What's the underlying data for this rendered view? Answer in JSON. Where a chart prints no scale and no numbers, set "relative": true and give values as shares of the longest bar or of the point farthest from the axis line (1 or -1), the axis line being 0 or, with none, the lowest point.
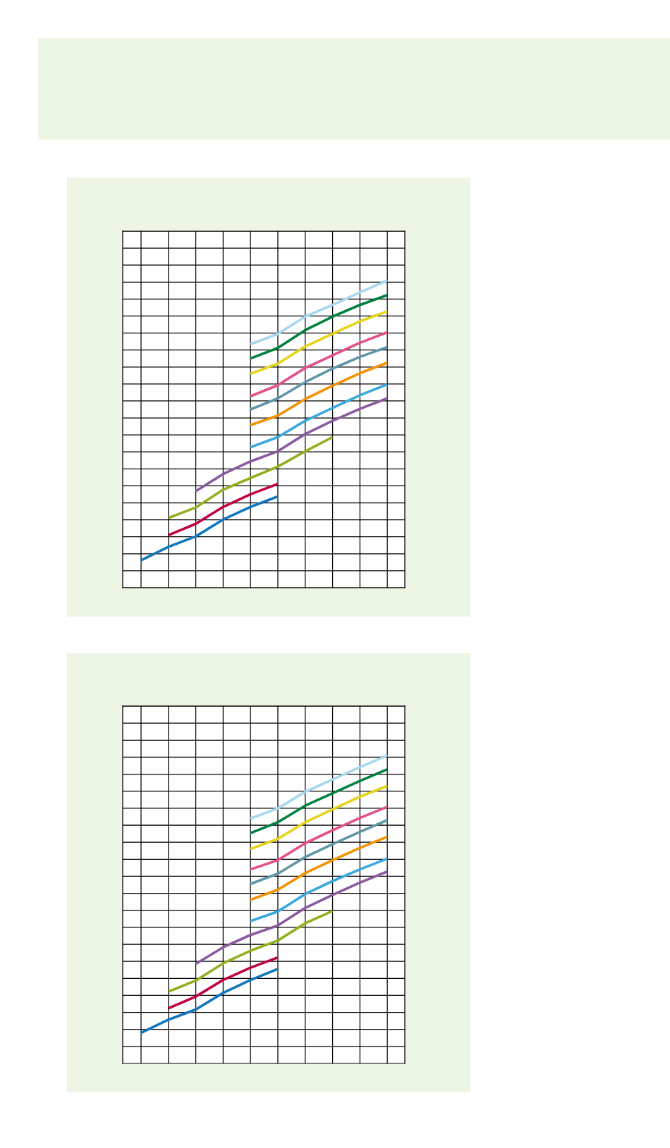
{
  "chart_data": [
    {
      "type": "line",
      "relative": true,
      "grid": true,
      "categories": [
        null,
        null,
        null,
        null,
        null,
        null,
        null,
        null,
        null,
        null
      ],
      "series": [
        {
          "color": "#0f77bd",
          "values": [
            0.089,
            0.133,
            0.167,
            0.222,
            0.263,
            0.297,
            null,
            null,
            null,
            null
          ]
        },
        {
          "color": "#c0003c",
          "values": [
            null,
            0.171,
            0.208,
            0.263,
            0.304,
            0.338,
            null,
            null,
            null,
            null
          ]
        },
        {
          "color": "#8fb120",
          "values": [
            null,
            0.227,
            0.261,
            0.319,
            0.357,
            0.394,
            0.444,
            0.49,
            null,
            null
          ]
        },
        {
          "color": "#8b5a9e",
          "values": [
            null,
            null,
            0.314,
            0.37,
            0.411,
            0.444,
            0.5,
            0.543,
            0.582,
            0.616
          ]
        },
        {
          "color": "#3aa8dc",
          "values": [
            null,
            null,
            null,
            null,
            0.457,
            0.49,
            0.543,
            0.585,
            0.626,
            0.662
          ]
        },
        {
          "color": "#f39200",
          "values": [
            null,
            null,
            null,
            null,
            0.529,
            0.56,
            0.614,
            0.657,
            0.698,
            0.732
          ]
        },
        {
          "color": "#5f96a8",
          "values": [
            null,
            null,
            null,
            null,
            0.58,
            0.616,
            0.669,
            0.713,
            0.751,
            0.783
          ]
        },
        {
          "color": "#e4508a",
          "values": [
            null,
            null,
            null,
            null,
            0.623,
            0.659,
            0.715,
            0.756,
            0.797,
            0.831
          ]
        },
        {
          "color": "#e5d41a",
          "values": [
            null,
            null,
            null,
            null,
            0.696,
            0.729,
            0.785,
            0.826,
            0.867,
            0.899
          ]
        },
        {
          "color": "#00803f",
          "values": [
            null,
            null,
            null,
            null,
            0.746,
            0.78,
            0.838,
            0.882,
            0.92,
            0.952
          ]
        },
        {
          "color": "#a7d8ef",
          "values": [
            null,
            null,
            null,
            null,
            0.792,
            0.826,
            0.882,
            0.92,
            0.961,
            1.0
          ]
        }
      ]
    },
    {
      "type": "line",
      "relative": true,
      "grid": true,
      "categories": [
        null,
        null,
        null,
        null,
        null,
        null,
        null,
        null,
        null,
        null
      ],
      "series": [
        {
          "color": "#0f77bd",
          "values": [
            0.099,
            0.142,
            0.175,
            0.229,
            0.271,
            0.307,
            null,
            null,
            null,
            null
          ]
        },
        {
          "color": "#c0003c",
          "values": [
            null,
            0.179,
            0.217,
            0.271,
            0.311,
            0.344,
            null,
            null,
            null,
            null
          ]
        },
        {
          "color": "#8fb120",
          "values": [
            null,
            0.233,
            0.269,
            0.325,
            0.366,
            0.399,
            0.455,
            0.495,
            null,
            null
          ]
        },
        {
          "color": "#8b5a9e",
          "values": [
            null,
            null,
            0.323,
            0.377,
            0.417,
            0.448,
            0.505,
            0.547,
            0.587,
            0.623
          ]
        },
        {
          "color": "#3aa8dc",
          "values": [
            null,
            null,
            null,
            null,
            0.462,
            0.493,
            0.55,
            0.592,
            0.63,
            0.665
          ]
        },
        {
          "color": "#f39200",
          "values": [
            null,
            null,
            null,
            null,
            0.531,
            0.564,
            0.618,
            0.66,
            0.7,
            0.736
          ]
        },
        {
          "color": "#5f96a8",
          "values": [
            null,
            null,
            null,
            null,
            0.583,
            0.616,
            0.67,
            0.712,
            0.752,
            0.79
          ]
        },
        {
          "color": "#e4508a",
          "values": [
            null,
            null,
            null,
            null,
            0.63,
            0.66,
            0.715,
            0.757,
            0.797,
            0.833
          ]
        },
        {
          "color": "#e5d41a",
          "values": [
            null,
            null,
            null,
            null,
            0.696,
            0.729,
            0.783,
            0.825,
            0.866,
            0.901
          ]
        },
        {
          "color": "#00803f",
          "values": [
            null,
            null,
            null,
            null,
            0.748,
            0.783,
            0.837,
            0.877,
            0.917,
            0.955
          ]
        },
        {
          "color": "#a7d8ef",
          "values": [
            null,
            null,
            null,
            null,
            0.795,
            0.828,
            0.882,
            0.922,
            0.962,
            1.0
          ]
        }
      ]
    }
  ]
}
